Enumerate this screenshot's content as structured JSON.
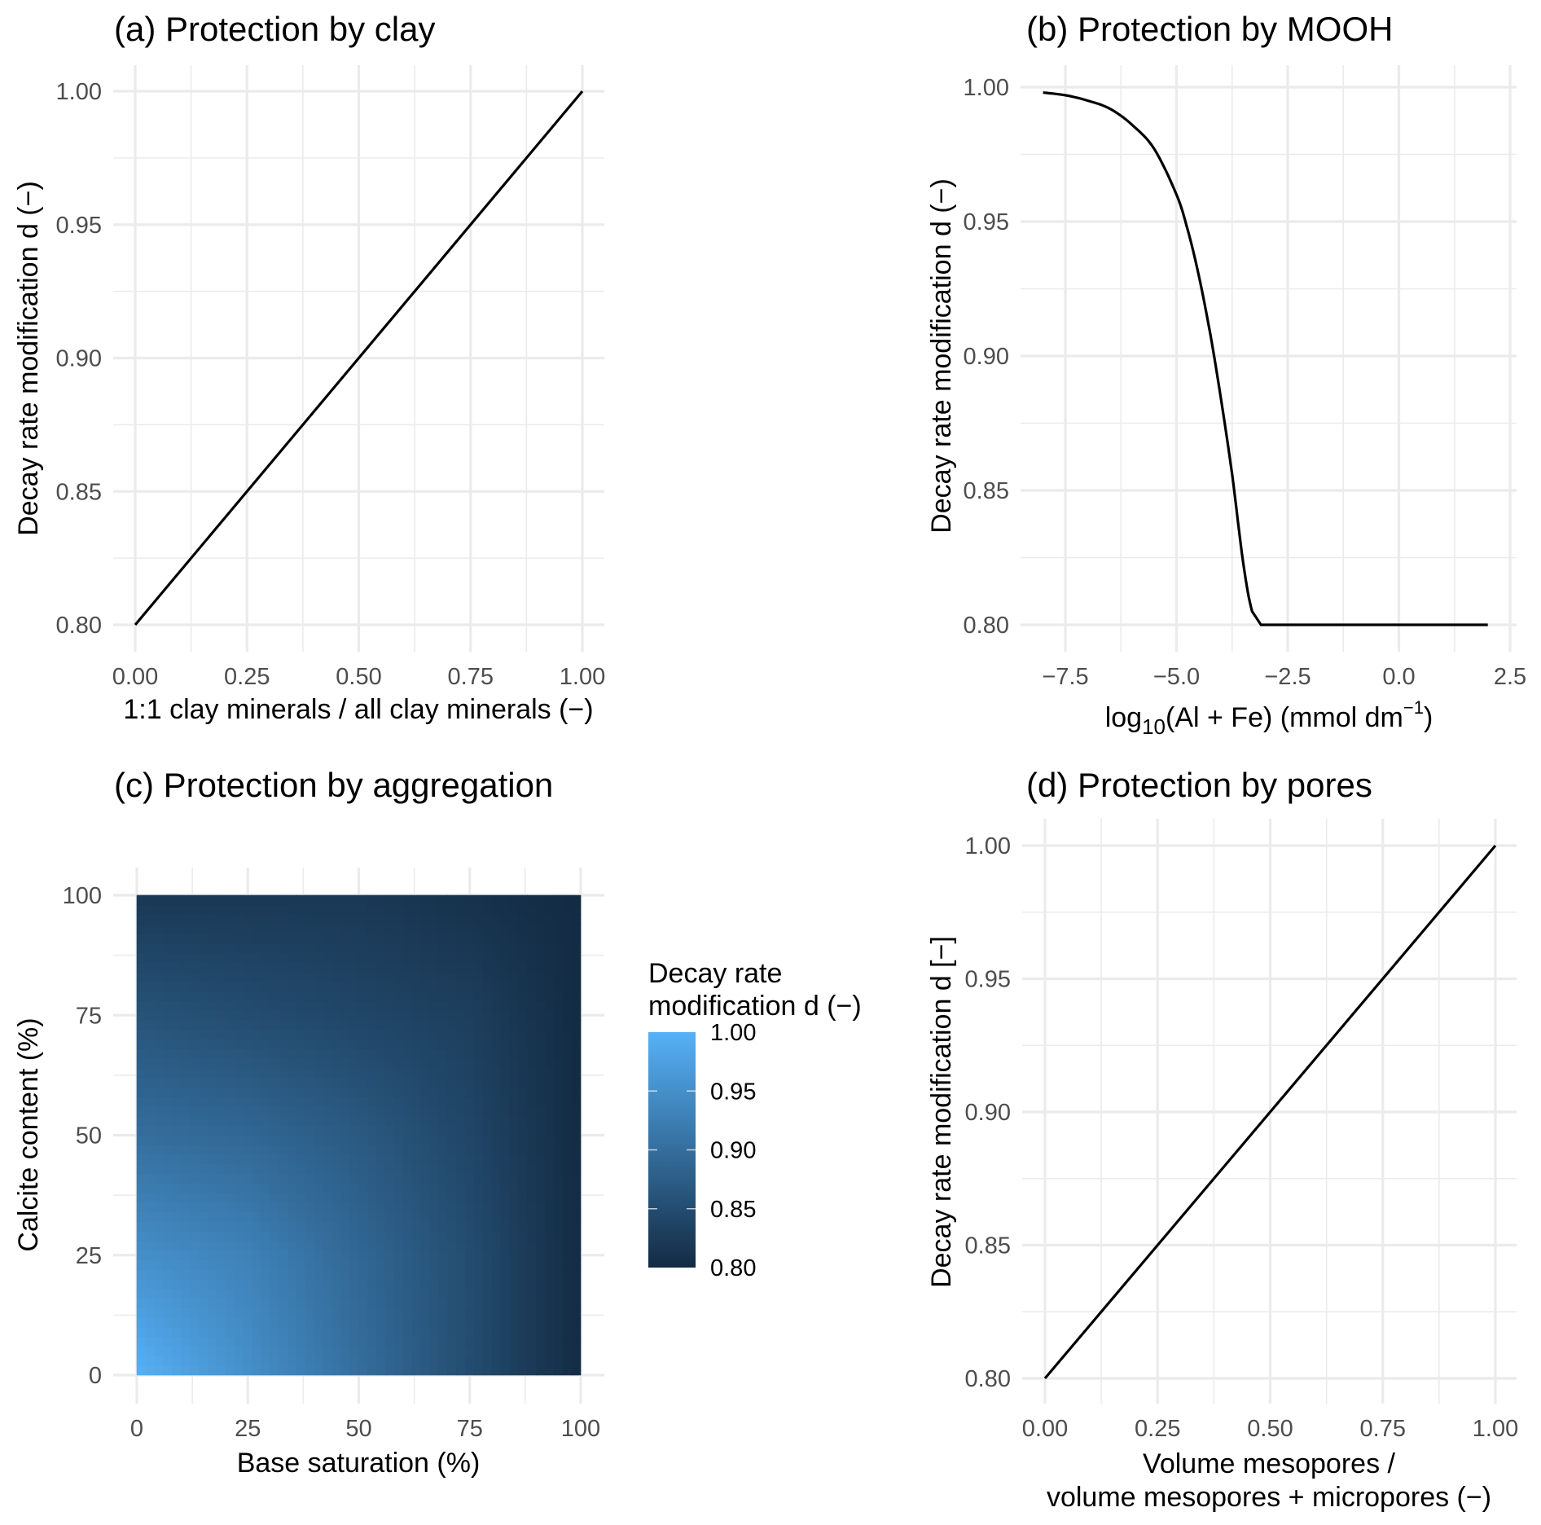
{
  "chart_data": [
    {
      "id": "a",
      "type": "line",
      "title": "(a) Protection by clay",
      "xlabel": "1:1 clay minerals / all clay minerals (−)",
      "ylabel": "Decay rate modification d (−)",
      "xlim": [
        0,
        1
      ],
      "ylim": [
        0.8,
        1.0
      ],
      "xticks": [
        0,
        0.25,
        0.5,
        0.75,
        1.0
      ],
      "xtick_labels": [
        "0.00",
        "0.25",
        "0.50",
        "0.75",
        "1.00"
      ],
      "yticks": [
        0.8,
        0.85,
        0.9,
        0.95,
        1.0
      ],
      "ytick_labels": [
        "0.80",
        "0.85",
        "0.90",
        "0.95",
        "1.00"
      ],
      "grid": true,
      "series": [
        {
          "name": "d",
          "x": [
            0,
            1
          ],
          "y": [
            0.8,
            1.0
          ]
        }
      ]
    },
    {
      "id": "b",
      "type": "line",
      "title": "(b) Protection by MOOH",
      "xlabel_parts": {
        "pre": "log",
        "sub": "10",
        "mid": "(Al + Fe) (mmol dm",
        "sup": "−1",
        "post": ")"
      },
      "ylabel": "Decay rate modification d (−)",
      "xlim": [
        -8,
        2
      ],
      "ylim": [
        0.8,
        1.0
      ],
      "xticks": [
        -7.5,
        -5.0,
        -2.5,
        0.0,
        2.5
      ],
      "xtick_labels": [
        "−7.5",
        "−5.0",
        "−2.5",
        "0.0",
        "2.5"
      ],
      "yticks": [
        0.8,
        0.85,
        0.9,
        0.95,
        1.0
      ],
      "ytick_labels": [
        "0.80",
        "0.85",
        "0.90",
        "0.95",
        "1.00"
      ],
      "grid": true,
      "series": [
        {
          "name": "d",
          "x": [
            -8.0,
            -7.5,
            -7.0,
            -6.5,
            -6.0,
            -5.5,
            -5.0,
            -4.75,
            -4.5,
            -4.25,
            -4.0,
            -3.75,
            -3.5,
            -3.3,
            -3.1,
            -2.5,
            0.0,
            2.0
          ],
          "y": [
            0.998,
            0.997,
            0.995,
            0.992,
            0.986,
            0.977,
            0.96,
            0.947,
            0.93,
            0.909,
            0.884,
            0.856,
            0.823,
            0.805,
            0.8,
            0.8,
            0.8,
            0.8
          ]
        }
      ]
    },
    {
      "id": "c",
      "type": "heatmap",
      "title": "(c) Protection by aggregation",
      "xlabel": "Base saturation (%)",
      "ylabel": "Calcite content (%)",
      "xlim": [
        0,
        100
      ],
      "ylim": [
        0,
        100
      ],
      "xticks": [
        0,
        25,
        50,
        75,
        100
      ],
      "xtick_labels": [
        "0",
        "25",
        "50",
        "75",
        "100"
      ],
      "yticks": [
        0,
        25,
        50,
        75,
        100
      ],
      "ytick_labels": [
        "0",
        "25",
        "50",
        "75",
        "100"
      ],
      "grid": true,
      "value_range": [
        0.8,
        1.0
      ],
      "sample_values": {
        "x": [
          0,
          25,
          50,
          75,
          100
        ],
        "y": [
          0,
          25,
          50,
          75,
          100
        ],
        "z": [
          [
            1.0,
            0.95,
            0.9,
            0.85,
            0.8
          ],
          [
            0.95,
            0.93,
            0.89,
            0.85,
            0.8
          ],
          [
            0.9,
            0.89,
            0.87,
            0.84,
            0.8
          ],
          [
            0.86,
            0.85,
            0.84,
            0.83,
            0.8
          ],
          [
            0.82,
            0.82,
            0.82,
            0.81,
            0.8
          ]
        ]
      },
      "legend": {
        "title_lines": [
          "Decay rate",
          "modification d (−)"
        ],
        "ticks": [
          1.0,
          0.95,
          0.9,
          0.85,
          0.8
        ],
        "tick_labels": [
          "1.00",
          "0.95",
          "0.90",
          "0.85",
          "0.80"
        ],
        "color_low": "#132B43",
        "color_high": "#56B1F7",
        "placement": "right"
      }
    },
    {
      "id": "d",
      "type": "line",
      "title": "(d) Protection by pores",
      "xlabel_lines": [
        "Volume mesopores /",
        "volume mesopores + micropores (−)"
      ],
      "ylabel": "Decay rate modification d [−]",
      "xlim": [
        0,
        1
      ],
      "ylim": [
        0.8,
        1.0
      ],
      "xticks": [
        0,
        0.25,
        0.5,
        0.75,
        1.0
      ],
      "xtick_labels": [
        "0.00",
        "0.25",
        "0.50",
        "0.75",
        "1.00"
      ],
      "yticks": [
        0.8,
        0.85,
        0.9,
        0.95,
        1.0
      ],
      "ytick_labels": [
        "0.80",
        "0.85",
        "0.90",
        "0.95",
        "1.00"
      ],
      "grid": true,
      "series": [
        {
          "name": "d",
          "x": [
            0,
            1
          ],
          "y": [
            0.8,
            1.0
          ]
        }
      ]
    }
  ]
}
